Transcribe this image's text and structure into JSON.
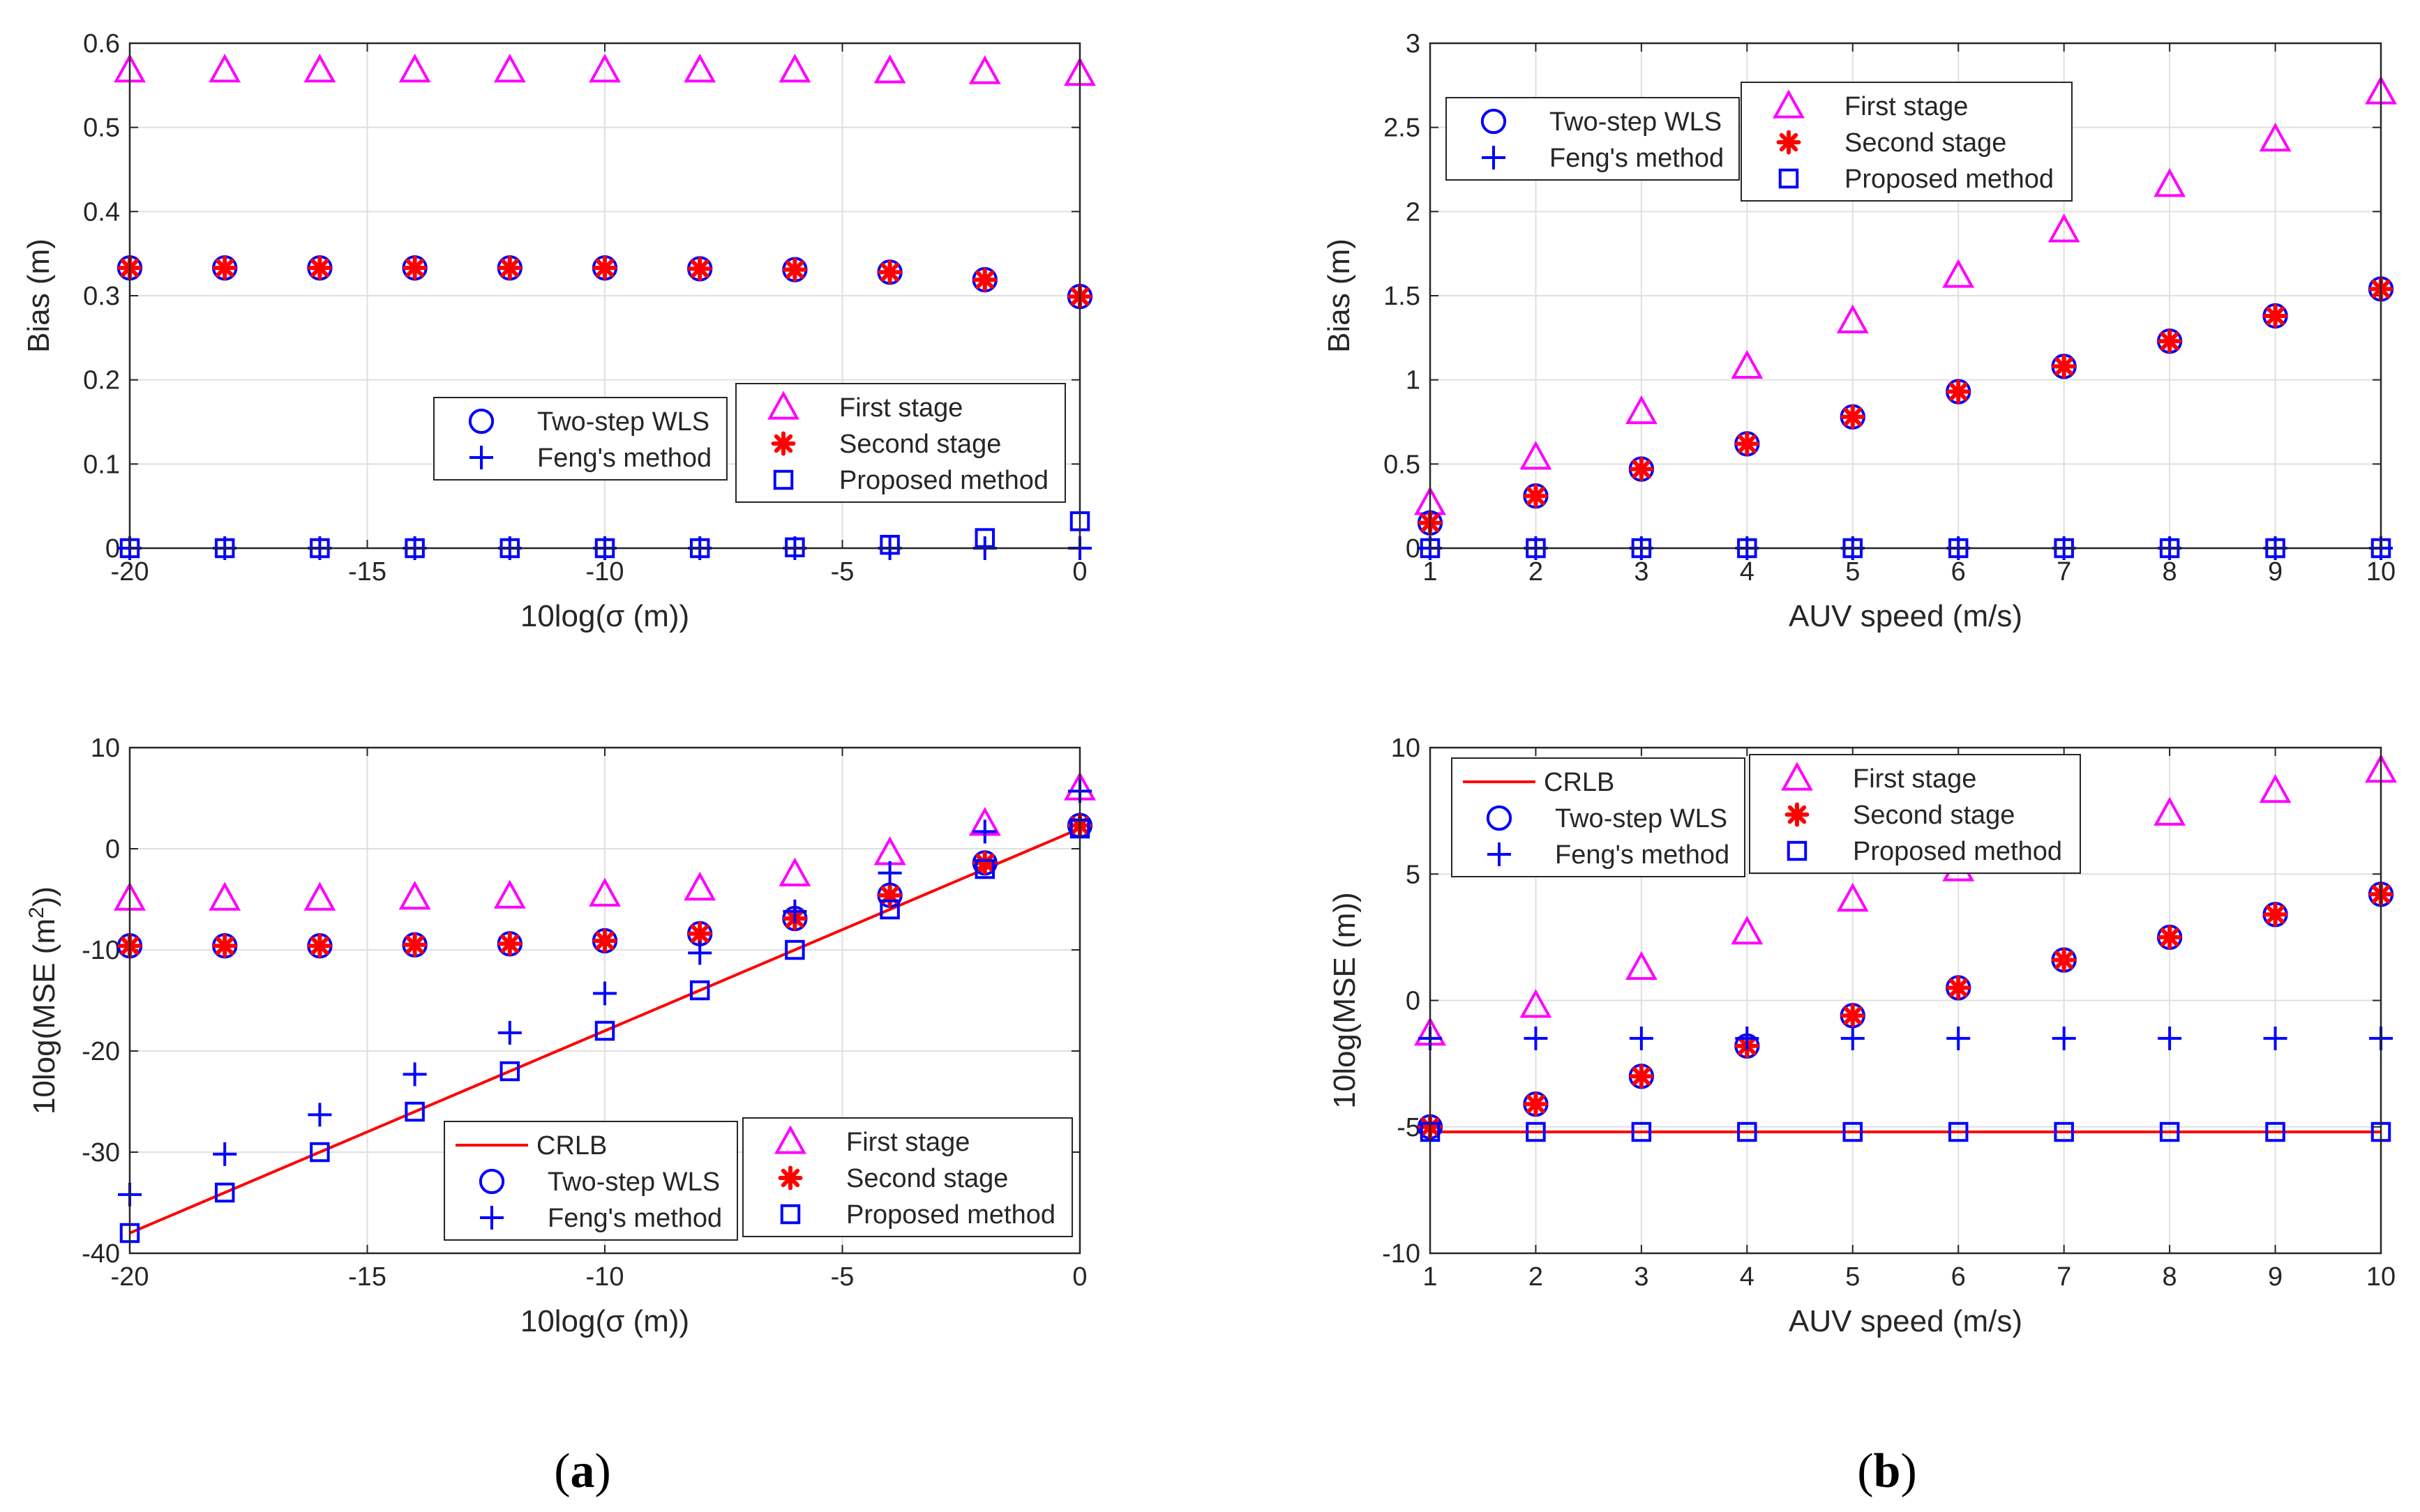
{
  "colors": {
    "first_stage": "#ff00ff",
    "second_stage": "#ff0000",
    "two_step": "#0000ff",
    "feng": "#0000ff",
    "proposed": "#0000ff",
    "crlb": "#ff0000",
    "grid": "#dfdfdf",
    "axis": "#262626"
  },
  "captions": {
    "a": {
      "open": "(",
      "letter": "a",
      "close": ")"
    },
    "b": {
      "open": "(",
      "letter": "b",
      "close": ")"
    }
  },
  "chart_data": [
    {
      "id": "a-top",
      "type": "scatter",
      "xlabel": "10log(σ (m))",
      "ylabel": "Bias (m)",
      "xlim": [
        -20,
        0
      ],
      "ylim": [
        0,
        0.6
      ],
      "xticks": [
        -20,
        -15,
        -10,
        -5,
        0
      ],
      "xtick_labels": [
        "-20",
        "-15",
        "-10",
        "-5",
        "0"
      ],
      "yticks": [
        0,
        0.1,
        0.2,
        0.3,
        0.4,
        0.5,
        0.6
      ],
      "ytick_labels": [
        "0",
        "0.1",
        "0.2",
        "0.3",
        "0.4",
        "0.5",
        "0.6"
      ],
      "grid": true,
      "x": [
        -20,
        -18,
        -16,
        -14,
        -12,
        -10,
        -8,
        -6,
        -4,
        -2,
        0
      ],
      "series": [
        {
          "key": "two_step",
          "name": "Two-step WLS",
          "marker": "circle",
          "values": [
            0.333,
            0.333,
            0.333,
            0.333,
            0.333,
            0.333,
            0.332,
            0.331,
            0.328,
            0.319,
            0.299
          ]
        },
        {
          "key": "feng",
          "name": "Feng's method",
          "marker": "plus",
          "values": [
            0,
            0,
            0,
            0,
            0,
            0,
            0,
            0,
            0,
            0,
            0
          ]
        },
        {
          "key": "first_stage",
          "name": "First stage",
          "marker": "triangle",
          "values": [
            0.568,
            0.568,
            0.568,
            0.568,
            0.568,
            0.568,
            0.568,
            0.568,
            0.567,
            0.566,
            0.564
          ]
        },
        {
          "key": "second_stage",
          "name": "Second stage",
          "marker": "star",
          "values": [
            0.333,
            0.333,
            0.333,
            0.333,
            0.333,
            0.333,
            0.332,
            0.331,
            0.328,
            0.319,
            0.299
          ]
        },
        {
          "key": "proposed",
          "name": "Proposed method",
          "marker": "square",
          "values": [
            0,
            0,
            0,
            0,
            0,
            0,
            0,
            0.001,
            0.004,
            0.012,
            0.032
          ]
        }
      ],
      "legends": [
        {
          "items": [
            "two_step",
            "feng"
          ],
          "position": "lower-center-left"
        },
        {
          "items": [
            "first_stage",
            "second_stage",
            "proposed"
          ],
          "position": "lower-right"
        }
      ]
    },
    {
      "id": "b-top",
      "type": "scatter",
      "xlabel": "AUV speed (m/s)",
      "ylabel": "Bias (m)",
      "xlim": [
        1,
        10
      ],
      "ylim": [
        0,
        3
      ],
      "xticks": [
        1,
        2,
        3,
        4,
        5,
        6,
        7,
        8,
        9,
        10
      ],
      "xtick_labels": [
        "1",
        "2",
        "3",
        "4",
        "5",
        "6",
        "7",
        "8",
        "9",
        "10"
      ],
      "yticks": [
        0,
        0.5,
        1,
        1.5,
        2,
        2.5,
        3
      ],
      "ytick_labels": [
        "0",
        "0.5",
        "1",
        "1.5",
        "2",
        "2.5",
        "3"
      ],
      "grid": true,
      "x": [
        1,
        2,
        3,
        4,
        5,
        6,
        7,
        8,
        9,
        10
      ],
      "series": [
        {
          "key": "two_step",
          "name": "Two-step WLS",
          "marker": "circle",
          "values": [
            0.15,
            0.31,
            0.47,
            0.62,
            0.78,
            0.93,
            1.08,
            1.23,
            1.38,
            1.54
          ]
        },
        {
          "key": "feng",
          "name": "Feng's method",
          "marker": "plus",
          "values": [
            0,
            0,
            0,
            0,
            0,
            0,
            0,
            0,
            0,
            0
          ]
        },
        {
          "key": "first_stage",
          "name": "First stage",
          "marker": "triangle",
          "values": [
            0.27,
            0.54,
            0.81,
            1.08,
            1.35,
            1.62,
            1.89,
            2.16,
            2.43,
            2.71
          ]
        },
        {
          "key": "second_stage",
          "name": "Second stage",
          "marker": "star",
          "values": [
            0.15,
            0.31,
            0.47,
            0.62,
            0.78,
            0.93,
            1.08,
            1.23,
            1.38,
            1.54
          ]
        },
        {
          "key": "proposed",
          "name": "Proposed method",
          "marker": "square",
          "values": [
            0,
            0,
            0,
            0,
            0,
            0,
            0,
            0,
            0,
            0
          ]
        }
      ],
      "legends": [
        {
          "items": [
            "two_step",
            "feng"
          ],
          "position": "top-left"
        },
        {
          "items": [
            "first_stage",
            "second_stage",
            "proposed"
          ],
          "position": "top-center"
        }
      ]
    },
    {
      "id": "a-bottom",
      "type": "scatter",
      "xlabel": "10log(σ (m))",
      "ylabel_parts": [
        "10log(MSE (m",
        "2",
        "))"
      ],
      "xlim": [
        -20,
        0
      ],
      "ylim": [
        -40,
        10
      ],
      "xticks": [
        -20,
        -15,
        -10,
        -5,
        0
      ],
      "xtick_labels": [
        "-20",
        "-15",
        "-10",
        "-5",
        "0"
      ],
      "yticks": [
        -40,
        -30,
        -20,
        -10,
        0,
        10
      ],
      "ytick_labels": [
        "-40",
        "-30",
        "-20",
        "-10",
        "0",
        "10"
      ],
      "grid": true,
      "x": [
        -20,
        -18,
        -16,
        -14,
        -12,
        -10,
        -8,
        -6,
        -4,
        -2,
        0
      ],
      "series": [
        {
          "key": "crlb",
          "name": "CRLB",
          "marker": "line",
          "values": [
            -38,
            -34,
            -30,
            -26,
            -22,
            -18,
            -14,
            -10,
            -6,
            -2,
            2
          ]
        },
        {
          "key": "two_step",
          "name": "Two-step WLS",
          "marker": "circle",
          "values": [
            -9.6,
            -9.6,
            -9.6,
            -9.5,
            -9.4,
            -9.1,
            -8.4,
            -6.9,
            -4.6,
            -1.4,
            2.3
          ]
        },
        {
          "key": "feng",
          "name": "Feng's method",
          "marker": "plus",
          "values": [
            -34.2,
            -30.2,
            -26.3,
            -22.3,
            -18.2,
            -14.3,
            -10.3,
            -6.2,
            -2.4,
            1.7,
            5.7
          ]
        },
        {
          "key": "first_stage",
          "name": "First stage",
          "marker": "triangle",
          "values": [
            -4.9,
            -4.9,
            -4.9,
            -4.8,
            -4.7,
            -4.5,
            -3.9,
            -2.5,
            -0.4,
            2.5,
            6
          ]
        },
        {
          "key": "second_stage",
          "name": "Second stage",
          "marker": "star",
          "values": [
            -9.6,
            -9.6,
            -9.6,
            -9.5,
            -9.4,
            -9.1,
            -8.4,
            -6.9,
            -4.6,
            -1.4,
            2.3
          ]
        },
        {
          "key": "proposed",
          "name": "Proposed method",
          "marker": "square",
          "values": [
            -38,
            -34,
            -30,
            -26,
            -22,
            -18,
            -14,
            -10,
            -6,
            -2,
            2
          ]
        }
      ],
      "legends": [
        {
          "items": [
            "crlb",
            "two_step",
            "feng"
          ],
          "position": "lower-center-left"
        },
        {
          "items": [
            "first_stage",
            "second_stage",
            "proposed"
          ],
          "position": "lower-right"
        }
      ]
    },
    {
      "id": "b-bottom",
      "type": "scatter",
      "xlabel": "AUV speed (m/s)",
      "ylabel": "10log(MSE (m))",
      "xlim": [
        1,
        10
      ],
      "ylim": [
        -10,
        10
      ],
      "xticks": [
        1,
        2,
        3,
        4,
        5,
        6,
        7,
        8,
        9,
        10
      ],
      "xtick_labels": [
        "1",
        "2",
        "3",
        "4",
        "5",
        "6",
        "7",
        "8",
        "9",
        "10"
      ],
      "yticks": [
        -10,
        -5,
        0,
        5,
        10
      ],
      "ytick_labels": [
        "-10",
        "-5",
        "0",
        "5",
        "10"
      ],
      "grid": true,
      "x": [
        1,
        2,
        3,
        4,
        5,
        6,
        7,
        8,
        9,
        10
      ],
      "series": [
        {
          "key": "crlb",
          "name": "CRLB",
          "marker": "line",
          "values": [
            -5.2,
            -5.2,
            -5.2,
            -5.2,
            -5.2,
            -5.2,
            -5.2,
            -5.2,
            -5.2,
            -5.2
          ]
        },
        {
          "key": "two_step",
          "name": "Two-step WLS",
          "marker": "circle",
          "values": [
            -5,
            -4.1,
            -3,
            -1.8,
            -0.6,
            0.5,
            1.6,
            2.5,
            3.4,
            4.2
          ]
        },
        {
          "key": "feng",
          "name": "Feng's method",
          "marker": "plus",
          "values": [
            -1.5,
            -1.5,
            -1.5,
            -1.5,
            -1.5,
            -1.5,
            -1.5,
            -1.5,
            -1.5,
            -1.5
          ]
        },
        {
          "key": "first_stage",
          "name": "First stage",
          "marker": "triangle",
          "values": [
            -1.3,
            -0.2,
            1.3,
            2.7,
            4,
            5.2,
            6.3,
            7.4,
            8.3,
            9.1
          ]
        },
        {
          "key": "second_stage",
          "name": "Second stage",
          "marker": "star",
          "values": [
            -5,
            -4.1,
            -3,
            -1.8,
            -0.6,
            0.5,
            1.6,
            2.5,
            3.4,
            4.2
          ]
        },
        {
          "key": "proposed",
          "name": "Proposed method",
          "marker": "square",
          "values": [
            -5.2,
            -5.2,
            -5.2,
            -5.2,
            -5.2,
            -5.2,
            -5.2,
            -5.2,
            -5.2,
            -5.2
          ]
        }
      ],
      "legends": [
        {
          "items": [
            "crlb",
            "two_step",
            "feng"
          ],
          "position": "top-left"
        },
        {
          "items": [
            "first_stage",
            "second_stage",
            "proposed"
          ],
          "position": "top-center"
        }
      ]
    }
  ]
}
